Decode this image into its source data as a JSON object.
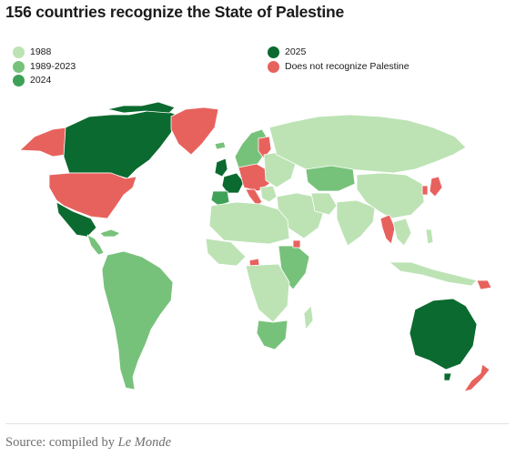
{
  "title": "156 countries recognize the State of Palestine",
  "legend": [
    {
      "label": "1988",
      "color": "#bde3b5"
    },
    {
      "label": "1989-2023",
      "color": "#77c27a"
    },
    {
      "label": "2024",
      "color": "#3ea157"
    },
    {
      "label": "2025",
      "color": "#0b6a2f"
    },
    {
      "label": "Does not recognize Palestine",
      "color": "#e8625d"
    }
  ],
  "source": {
    "prefix": "Source: compiled by ",
    "publisher": "Le Monde"
  },
  "map_colors": {
    "recognized_1988": "#bde3b5",
    "recognized_1989_2023": "#77c27a",
    "recognized_2024": "#3ea157",
    "recognized_2025": "#0b6a2f",
    "not_recognized": "#e8625d",
    "border": "#ffffff"
  }
}
